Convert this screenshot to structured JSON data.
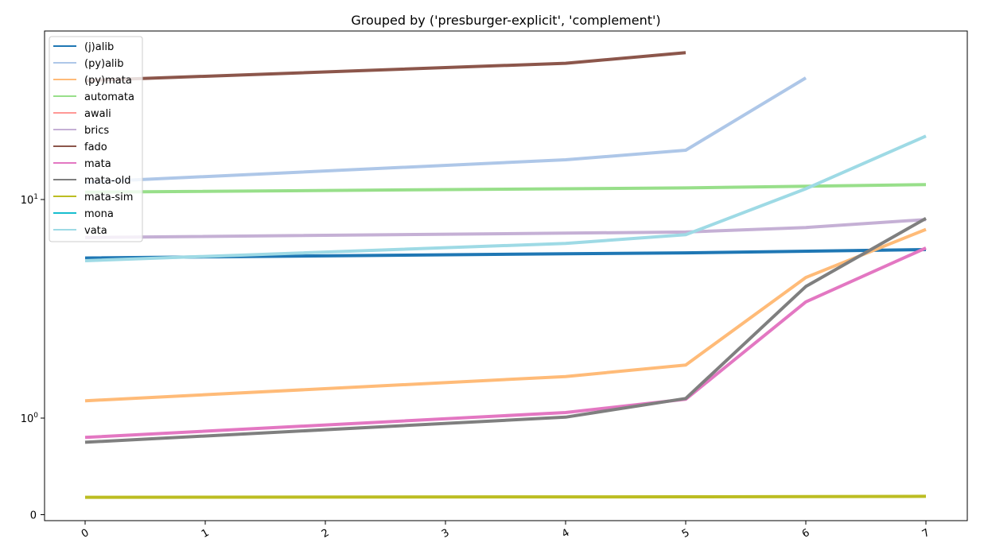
{
  "chart_data": {
    "type": "line",
    "title": "Grouped by ('presburger-explicit', 'complement')",
    "xlabel": "",
    "ylabel": "",
    "y_scale": "symlog",
    "x_ticks": [
      "0",
      "1",
      "2",
      "3",
      "4",
      "5",
      "6",
      "7"
    ],
    "y_ticks": [
      {
        "value": 0,
        "label": "0"
      },
      {
        "value": 1,
        "label": "10",
        "exp": "0"
      },
      {
        "value": 10,
        "label": "10",
        "exp": "1"
      }
    ],
    "legend_position": "upper-left",
    "grid": false,
    "series": [
      {
        "name": "(j)alib",
        "color": "#1f77b4",
        "points": [
          [
            0,
            5.4
          ],
          [
            4,
            5.65
          ],
          [
            5,
            5.7
          ],
          [
            7,
            5.9
          ]
        ]
      },
      {
        "name": "(py)alib",
        "color": "#aec7e8",
        "points": [
          [
            0,
            12.0
          ],
          [
            4,
            15.2
          ],
          [
            5,
            16.8
          ],
          [
            6,
            36.0
          ]
        ]
      },
      {
        "name": "(py)mata",
        "color": "#ffbb78",
        "points": [
          [
            0,
            1.2
          ],
          [
            4,
            1.55
          ],
          [
            5,
            1.75
          ],
          [
            6,
            4.4
          ],
          [
            7,
            7.3
          ]
        ]
      },
      {
        "name": "automata",
        "color": "#98df8a",
        "points": [
          [
            0,
            10.8
          ],
          [
            5,
            11.3
          ],
          [
            7,
            11.7
          ]
        ]
      },
      {
        "name": "awali",
        "color": "#ff9896",
        "points": []
      },
      {
        "name": "brics",
        "color": "#c5b0d5",
        "points": [
          [
            0,
            6.7
          ],
          [
            5,
            7.1
          ],
          [
            6,
            7.45
          ],
          [
            7,
            8.1
          ]
        ]
      },
      {
        "name": "fado",
        "color": "#8c564b",
        "points": [
          [
            0,
            35.0
          ],
          [
            4,
            42.0
          ],
          [
            5,
            47.0
          ]
        ]
      },
      {
        "name": "mata",
        "color": "#e377c2",
        "points": [
          [
            0,
            0.8
          ],
          [
            4,
            1.06
          ],
          [
            5,
            1.22
          ],
          [
            6,
            3.4
          ],
          [
            7,
            6.0
          ]
        ]
      },
      {
        "name": "mata-old",
        "color": "#7f7f7f",
        "points": [
          [
            0,
            0.75
          ],
          [
            4,
            1.01
          ],
          [
            5,
            1.23
          ],
          [
            6,
            4.0
          ],
          [
            7,
            8.2
          ]
        ]
      },
      {
        "name": "mata-sim",
        "color": "#bcbd22",
        "points": [
          [
            0,
            0.18
          ],
          [
            5,
            0.185
          ],
          [
            7,
            0.19
          ]
        ]
      },
      {
        "name": "mona",
        "color": "#17becf",
        "points": []
      },
      {
        "name": "vata",
        "color": "#9edae5",
        "points": [
          [
            0,
            5.25
          ],
          [
            4,
            6.3
          ],
          [
            5,
            6.9
          ],
          [
            6,
            11.2
          ],
          [
            7,
            19.5
          ]
        ]
      }
    ]
  }
}
